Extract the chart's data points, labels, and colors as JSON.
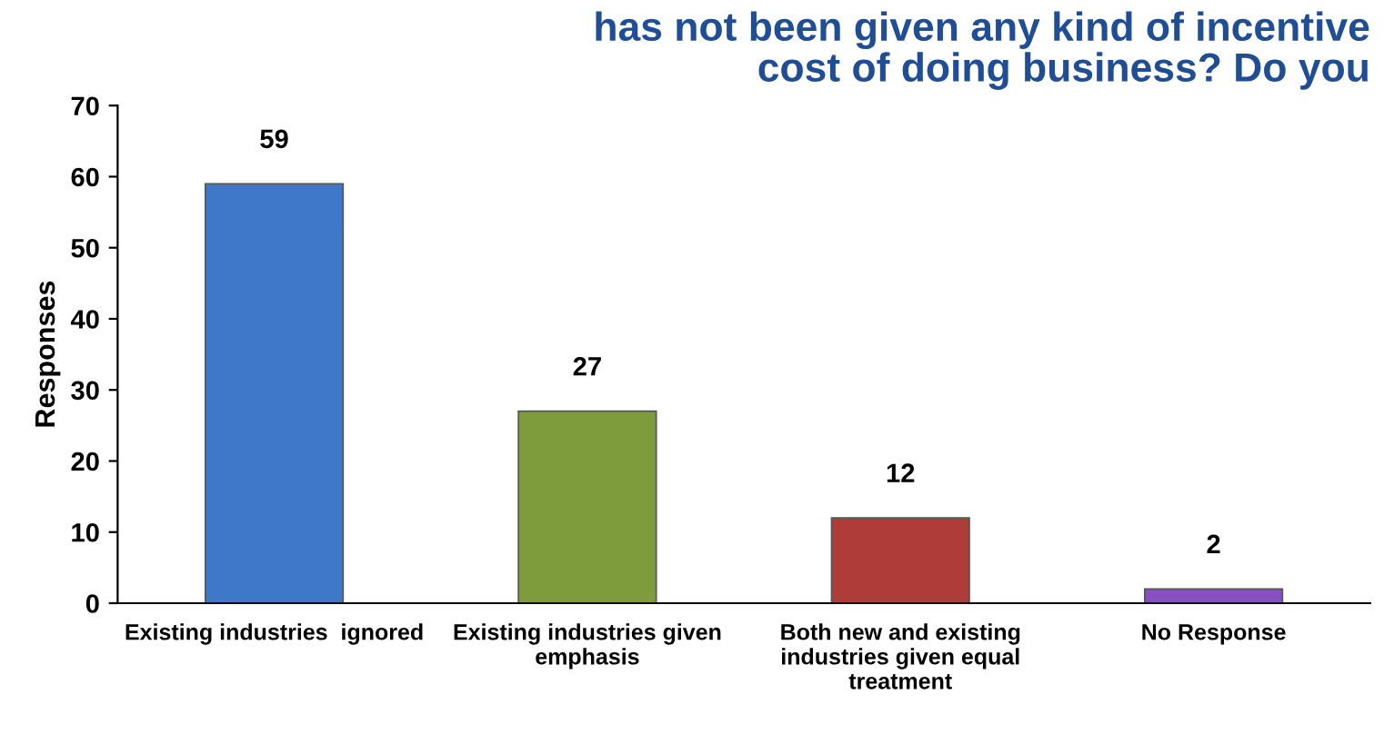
{
  "chart_data": {
    "type": "bar",
    "title": "has not been given any kind of incentive\ncost of doing business? Do you",
    "ylabel": "Responses",
    "categories": [
      "Existing industries  ignored",
      "Existing industries given\nemphasis",
      "Both new and existing\nindustries given equal\ntreatment",
      "No Response"
    ],
    "values": [
      59,
      27,
      12,
      2
    ],
    "colors": [
      "#3f78c8",
      "#7f9c3c",
      "#b03c3a",
      "#8650c4"
    ],
    "ylim": [
      0,
      70
    ],
    "yticks": [
      0,
      10,
      20,
      30,
      40,
      50,
      60,
      70
    ],
    "data_labels": true,
    "grid": false,
    "legend": false
  }
}
